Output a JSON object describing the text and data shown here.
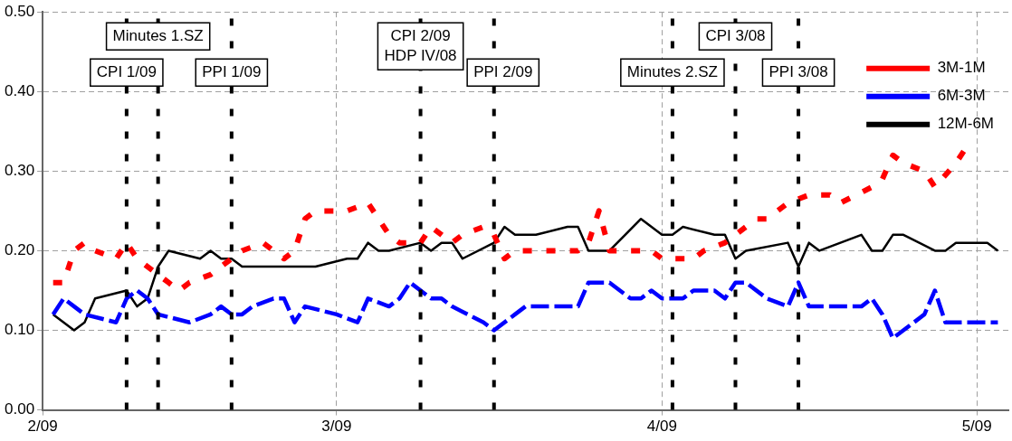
{
  "chart_data": {
    "type": "line",
    "xlim": [
      "2009-02-01",
      "2009-05-04"
    ],
    "xticks": [
      {
        "value": "2009-02-01",
        "label": "2/09"
      },
      {
        "value": "2009-03-01",
        "label": "3/09"
      },
      {
        "value": "2009-04-01",
        "label": "4/09"
      },
      {
        "value": "2009-05-01",
        "label": "5/09"
      }
    ],
    "ylim": [
      0,
      0.5
    ],
    "yticks": [
      {
        "value": 0,
        "label": "0.00"
      },
      {
        "value": 0.1,
        "label": "0.10"
      },
      {
        "value": 0.2,
        "label": "0.20"
      },
      {
        "value": 0.3,
        "label": "0.30"
      },
      {
        "value": 0.4,
        "label": "0.40"
      },
      {
        "value": 0.5,
        "label": "0.50"
      }
    ],
    "grid": true,
    "legend": "top right",
    "marker": "none",
    "series": [
      {
        "name": "3M-1M",
        "color": "#ff0000",
        "line_style": "dashed",
        "x": [
          "2009-02-02",
          "2009-02-03",
          "2009-02-04",
          "2009-02-05",
          "2009-02-06",
          "2009-02-08",
          "2009-02-09",
          "2009-02-10",
          "2009-02-12",
          "2009-02-13",
          "2009-02-14",
          "2009-02-15",
          "2009-02-17",
          "2009-02-18",
          "2009-02-20",
          "2009-02-22",
          "2009-02-24",
          "2009-02-25",
          "2009-02-26",
          "2009-02-27",
          "2009-03-01",
          "2009-03-02",
          "2009-03-04",
          "2009-03-05",
          "2009-03-06",
          "2009-03-07",
          "2009-03-09",
          "2009-03-10",
          "2009-03-12",
          "2009-03-13",
          "2009-03-15",
          "2009-03-16",
          "2009-03-17",
          "2009-03-18",
          "2009-03-20",
          "2009-03-21",
          "2009-03-24",
          "2009-03-25",
          "2009-03-26",
          "2009-03-27",
          "2009-03-29",
          "2009-03-31",
          "2009-04-01",
          "2009-04-04",
          "2009-04-05",
          "2009-04-07",
          "2009-04-08",
          "2009-04-10",
          "2009-04-11",
          "2009-04-13",
          "2009-04-15",
          "2009-04-17",
          "2009-04-18",
          "2009-04-21",
          "2009-04-22",
          "2009-04-23",
          "2009-04-24",
          "2009-04-26",
          "2009-04-27",
          "2009-04-29",
          "2009-04-30"
        ],
        "values": [
          0.16,
          0.16,
          0.2,
          0.21,
          0.2,
          0.19,
          0.21,
          0.19,
          0.17,
          0.16,
          0.15,
          0.16,
          0.17,
          0.18,
          0.2,
          0.21,
          0.19,
          0.2,
          0.24,
          0.25,
          0.25,
          0.25,
          0.26,
          0.24,
          0.22,
          0.21,
          0.21,
          0.23,
          0.21,
          0.22,
          0.23,
          0.22,
          0.19,
          0.2,
          0.2,
          0.2,
          0.2,
          0.21,
          0.25,
          0.2,
          0.2,
          0.2,
          0.19,
          0.19,
          0.2,
          0.21,
          0.22,
          0.24,
          0.24,
          0.26,
          0.27,
          0.27,
          0.26,
          0.28,
          0.29,
          0.32,
          0.31,
          0.3,
          0.28,
          0.31,
          0.33
        ]
      },
      {
        "name": "6M-3M",
        "color": "#0000ff",
        "line_style": "dashed",
        "x": [
          "2009-02-02",
          "2009-02-03",
          "2009-02-04",
          "2009-02-05",
          "2009-02-08",
          "2009-02-09",
          "2009-02-10",
          "2009-02-11",
          "2009-02-12",
          "2009-02-15",
          "2009-02-17",
          "2009-02-18",
          "2009-02-19",
          "2009-02-20",
          "2009-02-21",
          "2009-02-23",
          "2009-02-24",
          "2009-02-25",
          "2009-02-26",
          "2009-03-01",
          "2009-03-03",
          "2009-03-04",
          "2009-03-06",
          "2009-03-07",
          "2009-03-08",
          "2009-03-10",
          "2009-03-11",
          "2009-03-12",
          "2009-03-15",
          "2009-03-16",
          "2009-03-18",
          "2009-03-19",
          "2009-03-20",
          "2009-03-23",
          "2009-03-24",
          "2009-03-25",
          "2009-03-27",
          "2009-03-29",
          "2009-03-30",
          "2009-03-31",
          "2009-04-01",
          "2009-04-02",
          "2009-04-03",
          "2009-04-04",
          "2009-04-06",
          "2009-04-07",
          "2009-04-08",
          "2009-04-09",
          "2009-04-11",
          "2009-04-13",
          "2009-04-14",
          "2009-04-15",
          "2009-04-18",
          "2009-04-20",
          "2009-04-21",
          "2009-04-22",
          "2009-04-23",
          "2009-04-25",
          "2009-04-26",
          "2009-04-27",
          "2009-04-28",
          "2009-05-03"
        ],
        "values": [
          0.12,
          0.14,
          0.13,
          0.12,
          0.11,
          0.14,
          0.15,
          0.14,
          0.12,
          0.11,
          0.12,
          0.13,
          0.12,
          0.12,
          0.13,
          0.14,
          0.14,
          0.11,
          0.13,
          0.12,
          0.11,
          0.14,
          0.13,
          0.14,
          0.16,
          0.14,
          0.14,
          0.13,
          0.11,
          0.1,
          0.12,
          0.13,
          0.13,
          0.13,
          0.13,
          0.16,
          0.16,
          0.14,
          0.14,
          0.15,
          0.14,
          0.14,
          0.14,
          0.15,
          0.15,
          0.14,
          0.16,
          0.16,
          0.14,
          0.13,
          0.16,
          0.13,
          0.13,
          0.13,
          0.14,
          0.12,
          0.09,
          0.11,
          0.12,
          0.15,
          0.11,
          0.11
        ]
      },
      {
        "name": "12M-6M",
        "color": "#000000",
        "line_style": "solid",
        "x": [
          "2009-02-02",
          "2009-02-04",
          "2009-02-05",
          "2009-02-06",
          "2009-02-09",
          "2009-02-10",
          "2009-02-11",
          "2009-02-12",
          "2009-02-13",
          "2009-02-16",
          "2009-02-17",
          "2009-02-18",
          "2009-02-19",
          "2009-02-20",
          "2009-02-27",
          "2009-03-02",
          "2009-03-03",
          "2009-03-04",
          "2009-03-05",
          "2009-03-06",
          "2009-03-09",
          "2009-03-10",
          "2009-03-11",
          "2009-03-12",
          "2009-03-13",
          "2009-03-16",
          "2009-03-17",
          "2009-03-18",
          "2009-03-20",
          "2009-03-23",
          "2009-03-24",
          "2009-03-25",
          "2009-03-27",
          "2009-03-30",
          "2009-03-31",
          "2009-04-01",
          "2009-04-02",
          "2009-04-03",
          "2009-04-06",
          "2009-04-07",
          "2009-04-08",
          "2009-04-09",
          "2009-04-13",
          "2009-04-14",
          "2009-04-15",
          "2009-04-16",
          "2009-04-20",
          "2009-04-21",
          "2009-04-22",
          "2009-04-23",
          "2009-04-24",
          "2009-04-27",
          "2009-04-28",
          "2009-04-29",
          "2009-05-02",
          "2009-05-03"
        ],
        "values": [
          0.12,
          0.1,
          0.11,
          0.14,
          0.15,
          0.13,
          0.14,
          0.18,
          0.2,
          0.19,
          0.2,
          0.19,
          0.19,
          0.18,
          0.18,
          0.19,
          0.19,
          0.21,
          0.2,
          0.2,
          0.21,
          0.2,
          0.21,
          0.21,
          0.19,
          0.21,
          0.23,
          0.22,
          0.22,
          0.23,
          0.23,
          0.2,
          0.2,
          0.24,
          0.23,
          0.22,
          0.22,
          0.23,
          0.22,
          0.22,
          0.19,
          0.2,
          0.21,
          0.18,
          0.21,
          0.2,
          0.22,
          0.2,
          0.2,
          0.22,
          0.22,
          0.2,
          0.2,
          0.21,
          0.21,
          0.2
        ]
      }
    ],
    "ref_lines": [
      {
        "axis": "x",
        "value": "2009-02-09",
        "label": "CPI 1/09",
        "color": "#000000",
        "line_style": "dashed"
      },
      {
        "axis": "x",
        "value": "2009-02-12",
        "label": "Minutes 1.SZ",
        "color": "#000000",
        "line_style": "dashed"
      },
      {
        "axis": "x",
        "value": "2009-02-19",
        "label": "PPI 1/09",
        "color": "#000000",
        "line_style": "dashed"
      },
      {
        "axis": "x",
        "value": "2009-03-09",
        "label": "CPI 2/09\nHDP IV/08",
        "color": "#000000",
        "line_style": "dashed"
      },
      {
        "axis": "x",
        "value": "2009-03-16",
        "label": "PPI 2/09",
        "color": "#000000",
        "line_style": "dashed"
      },
      {
        "axis": "x",
        "value": "2009-04-02",
        "label": "Minutes 2.SZ",
        "color": "#000000",
        "line_style": "dashed"
      },
      {
        "axis": "x",
        "value": "2009-04-08",
        "label": "CPI 3/08",
        "color": "#000000",
        "line_style": "dashed"
      },
      {
        "axis": "x",
        "value": "2009-04-14",
        "label": "PPI 3/08",
        "color": "#000000",
        "line_style": "dashed"
      }
    ]
  }
}
